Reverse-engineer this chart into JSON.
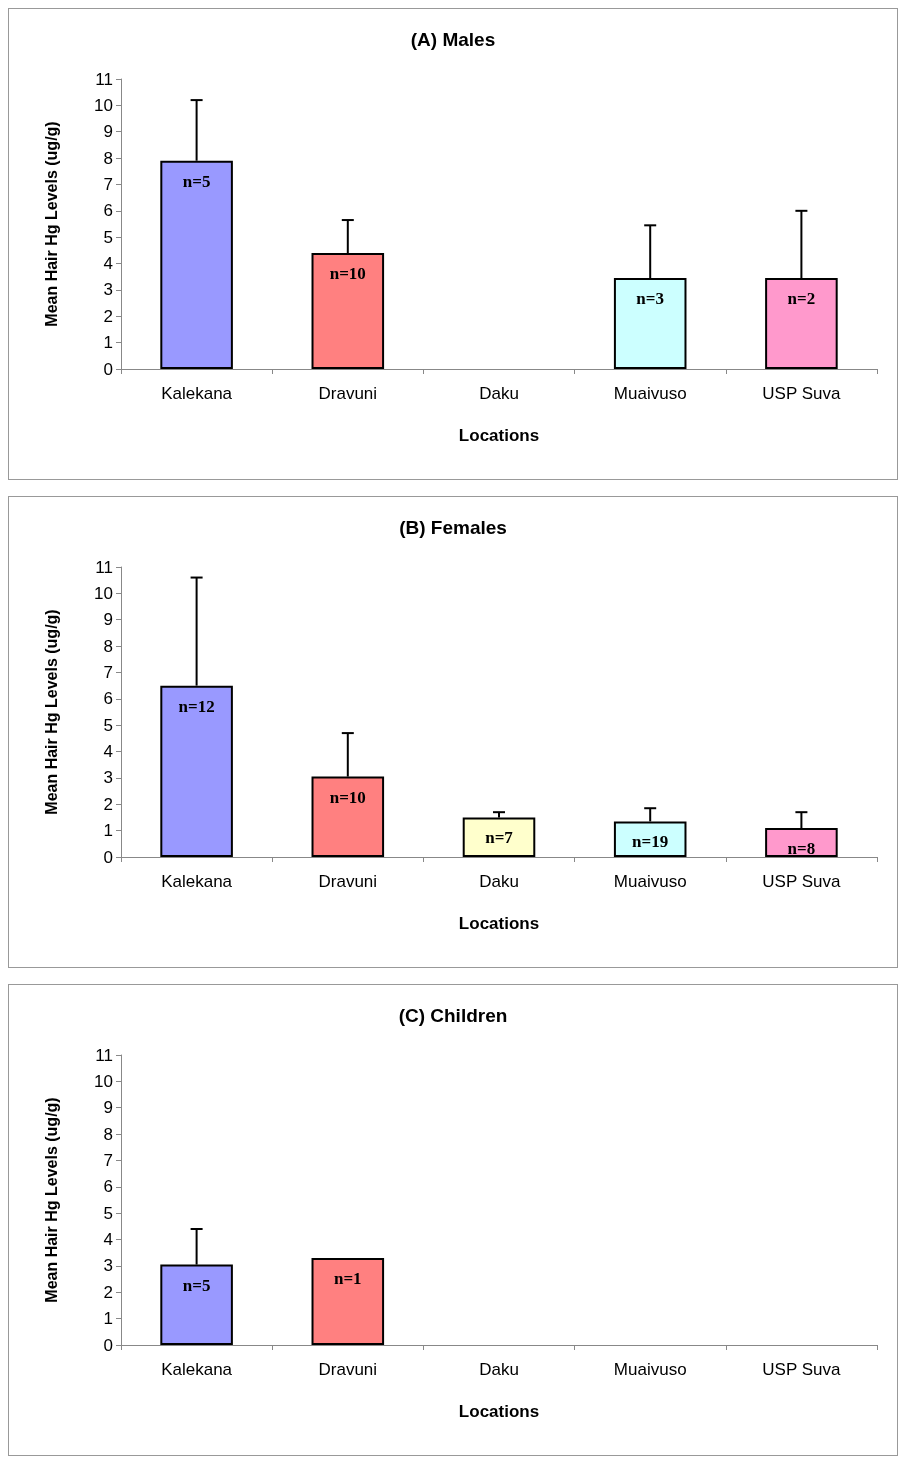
{
  "chart_data": [
    {
      "type": "bar",
      "title": "(A) Males",
      "xlabel": "Locations",
      "ylabel": "Mean Hair Hg Levels (ug/g)",
      "categories": [
        "Kalekana",
        "Dravuni",
        "Daku",
        "Muaivuso",
        "USP Suva"
      ],
      "values": [
        7.9,
        4.4,
        0,
        3.45,
        3.45
      ],
      "colors": [
        "#9999ff",
        "#ff8080",
        "#000000",
        "#ccffff",
        "#ff99cc"
      ],
      "errors": [
        [
          7.9,
          10.2
        ],
        [
          4.4,
          5.65
        ],
        null,
        [
          3.45,
          5.45
        ],
        [
          3.45,
          6.0
        ]
      ],
      "annotations": [
        "n=5",
        "n=10",
        "n=3",
        "n=2"
      ],
      "ylim": [
        0,
        11
      ],
      "yticks": [
        0,
        1,
        2,
        3,
        4,
        5,
        6,
        7,
        8,
        9,
        10,
        11
      ],
      "grid": false
    },
    {
      "type": "bar",
      "title": "(B) Females",
      "xlabel": "Locations",
      "ylabel": "Mean Hair Hg Levels (ug/g)",
      "categories": [
        "Kalekana",
        "Dravuni",
        "Daku",
        "Muaivuso",
        "USP Suva"
      ],
      "values": [
        6.5,
        3.05,
        1.5,
        1.35,
        1.1
      ],
      "colors": [
        "#9999ff",
        "#ff8080",
        "#ffffcc",
        "#ccffff",
        "#ff99cc"
      ],
      "errors": [
        [
          6.5,
          10.6
        ],
        [
          3.05,
          4.7
        ],
        [
          1.5,
          1.7
        ],
        [
          1.35,
          1.85
        ],
        [
          1.1,
          1.7
        ]
      ],
      "annotations": [
        "n=12",
        "n=10",
        "n=7",
        "n=19",
        "n=8"
      ],
      "ylim": [
        0,
        11
      ],
      "yticks": [
        0,
        1,
        2,
        3,
        4,
        5,
        6,
        7,
        8,
        9,
        10,
        11
      ],
      "grid": false
    },
    {
      "type": "bar",
      "title": "(C) Children",
      "xlabel": "Locations",
      "ylabel": "Mean Hair Hg Levels (ug/g)",
      "categories": [
        "Kalekana",
        "Dravuni",
        "Daku",
        "Muaivuso",
        "USP Suva"
      ],
      "values": [
        3.05,
        3.3,
        0,
        0,
        0
      ],
      "colors": [
        "#9999ff",
        "#ff8080",
        "#000000",
        "#000000",
        "#000000"
      ],
      "errors": [
        [
          3.05,
          4.4
        ],
        null,
        null,
        null,
        null
      ],
      "annotations": [
        "n=5",
        "n=1"
      ],
      "ylim": [
        0,
        11
      ],
      "yticks": [
        0,
        1,
        2,
        3,
        4,
        5,
        6,
        7,
        8,
        9,
        10,
        11
      ],
      "grid": false
    }
  ]
}
